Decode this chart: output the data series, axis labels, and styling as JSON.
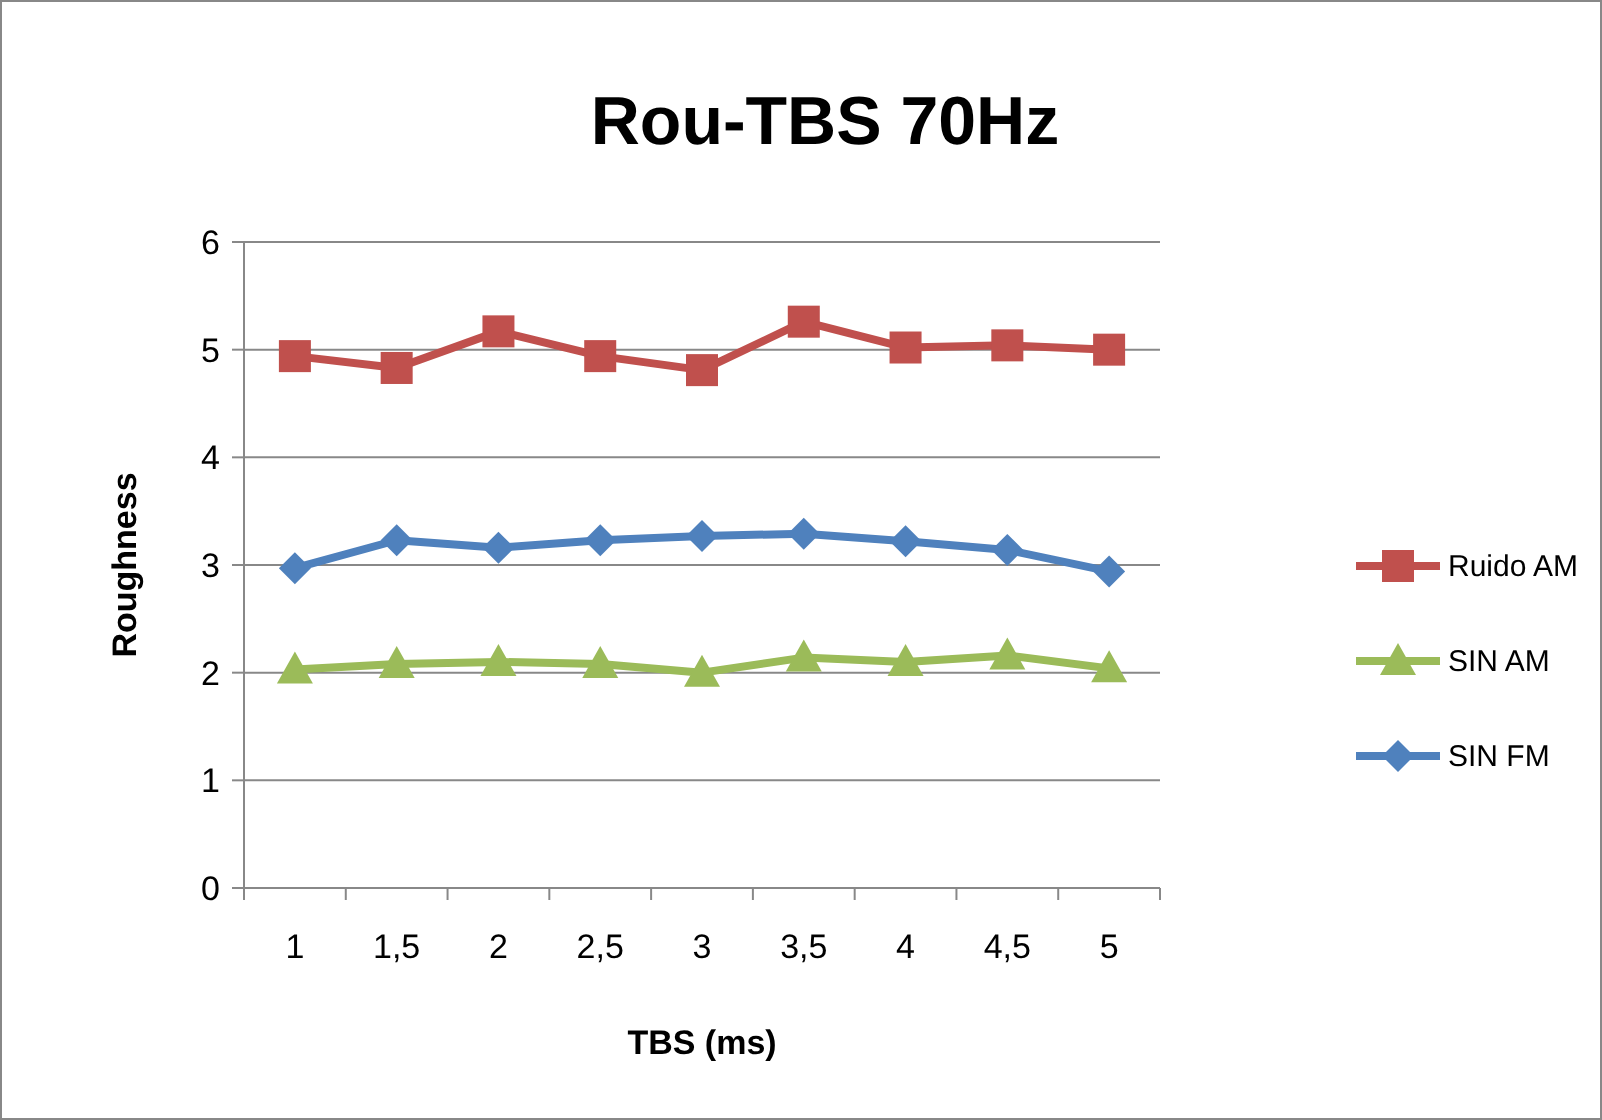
{
  "chart_data": {
    "type": "line",
    "title": "Rou-TBS 70Hz",
    "xlabel": "TBS (ms)",
    "ylabel": "Roughness",
    "categories": [
      "1",
      "1,5",
      "2",
      "2,5",
      "3",
      "3,5",
      "4",
      "4,5",
      "5"
    ],
    "series": [
      {
        "name": "Ruido AM",
        "color": "#c0504d",
        "marker": "square",
        "values": [
          4.94,
          4.83,
          5.17,
          4.94,
          4.81,
          5.26,
          5.02,
          5.04,
          5.0
        ]
      },
      {
        "name": "SIN AM",
        "color": "#9bbb59",
        "marker": "triangle",
        "values": [
          2.03,
          2.08,
          2.1,
          2.08,
          2.0,
          2.14,
          2.1,
          2.16,
          2.04
        ]
      },
      {
        "name": "SIN FM",
        "color": "#4f81bd",
        "marker": "diamond",
        "values": [
          2.97,
          3.23,
          3.16,
          3.23,
          3.27,
          3.29,
          3.22,
          3.14,
          2.94
        ]
      }
    ],
    "ylim": [
      0,
      6
    ],
    "yticks": [
      0,
      1,
      2,
      3,
      4,
      5,
      6
    ],
    "grid": "y",
    "legend": "right"
  }
}
